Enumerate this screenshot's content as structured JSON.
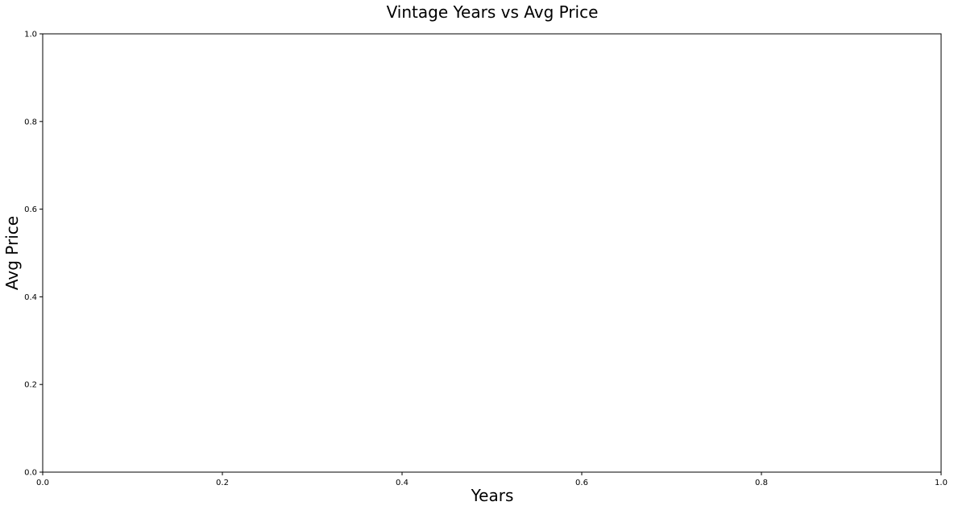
{
  "chart_data": {
    "type": "line",
    "title": "Vintage Years vs Avg Price",
    "xlabel": "Years",
    "ylabel": "Avg Price",
    "xlim": [
      0,
      1
    ],
    "ylim": [
      0,
      1
    ],
    "xticks": [
      "0.0",
      "0.2",
      "0.4",
      "0.6",
      "0.8",
      "1.0"
    ],
    "yticks": [
      "0.0",
      "0.2",
      "0.4",
      "0.6",
      "0.8",
      "1.0"
    ],
    "series": [],
    "grid": false,
    "legend": "none"
  }
}
